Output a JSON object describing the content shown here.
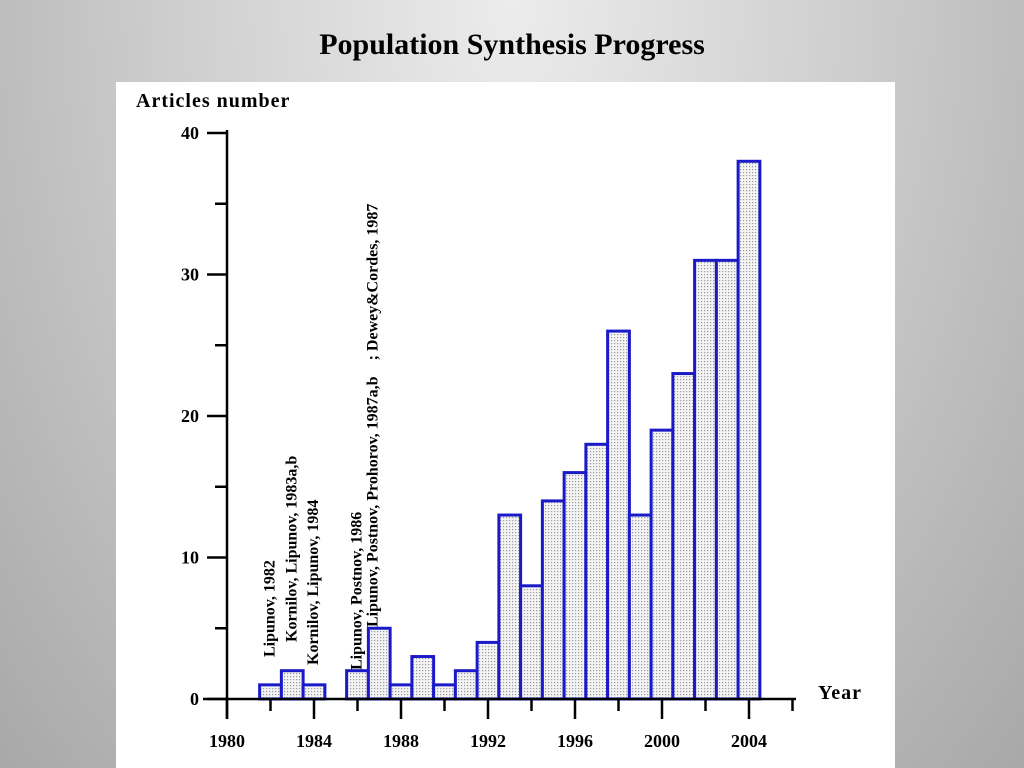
{
  "slide": {
    "title": "Population Synthesis Progress"
  },
  "chart_data": {
    "type": "bar",
    "ylabel": "Articles number",
    "xlabel": "Year",
    "xlim": [
      1980,
      2006
    ],
    "ylim": [
      0,
      40
    ],
    "xticks": [
      1980,
      1984,
      1988,
      1992,
      1996,
      2000,
      2004
    ],
    "yticks": [
      0,
      10,
      20,
      30,
      40
    ],
    "x": [
      1982,
      1983,
      1984,
      1986,
      1987,
      1988,
      1989,
      1990,
      1991,
      1992,
      1993,
      1994,
      1995,
      1996,
      1997,
      1998,
      1999,
      2000,
      2001,
      2002,
      2003,
      2004
    ],
    "values": [
      1,
      2,
      1,
      2,
      5,
      1,
      3,
      1,
      2,
      4,
      13,
      8,
      14,
      16,
      18,
      26,
      13,
      19,
      23,
      31,
      31,
      38
    ],
    "bar_color": "#1a1ac8",
    "bar_fill": "#dcdcdc",
    "annotations": [
      {
        "text": "Lipunov, 1982",
        "x": 1982
      },
      {
        "text": "Kornilov, Lipunov, 1983a,b",
        "x": 1983
      },
      {
        "text": "Kornilov, Lipunov, 1984",
        "x": 1984
      },
      {
        "text": "Lipunov, Postnov, 1986",
        "x": 1986
      },
      {
        "text": "Lipunov, Postnov, Prohorov, 1987a,b    ; Dewey&Cordes, 1987",
        "x": 1987
      }
    ]
  }
}
